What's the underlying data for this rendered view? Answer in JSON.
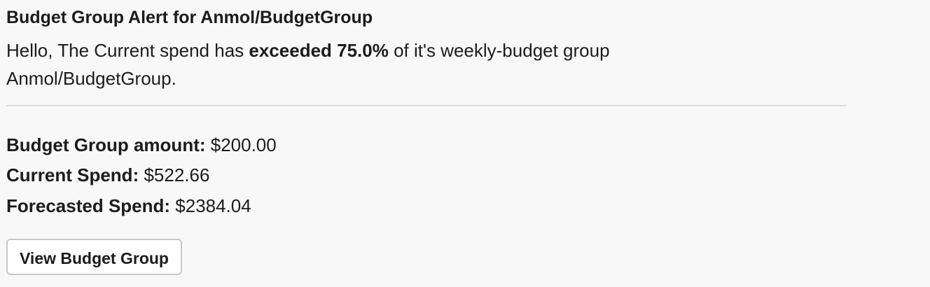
{
  "title": "Budget Group Alert for Anmol/BudgetGroup",
  "message": {
    "prefix": "Hello, The Current spend has ",
    "bold": "exceeded 75.0%",
    "suffix": " of it's weekly-budget group Anmol/BudgetGroup."
  },
  "fields": [
    {
      "label": "Budget Group amount:",
      "value": " $200.00"
    },
    {
      "label": "Current Spend:",
      "value": " $522.66"
    },
    {
      "label": "Forecasted Spend:",
      "value": " $2384.04"
    }
  ],
  "button": "View Budget Group"
}
